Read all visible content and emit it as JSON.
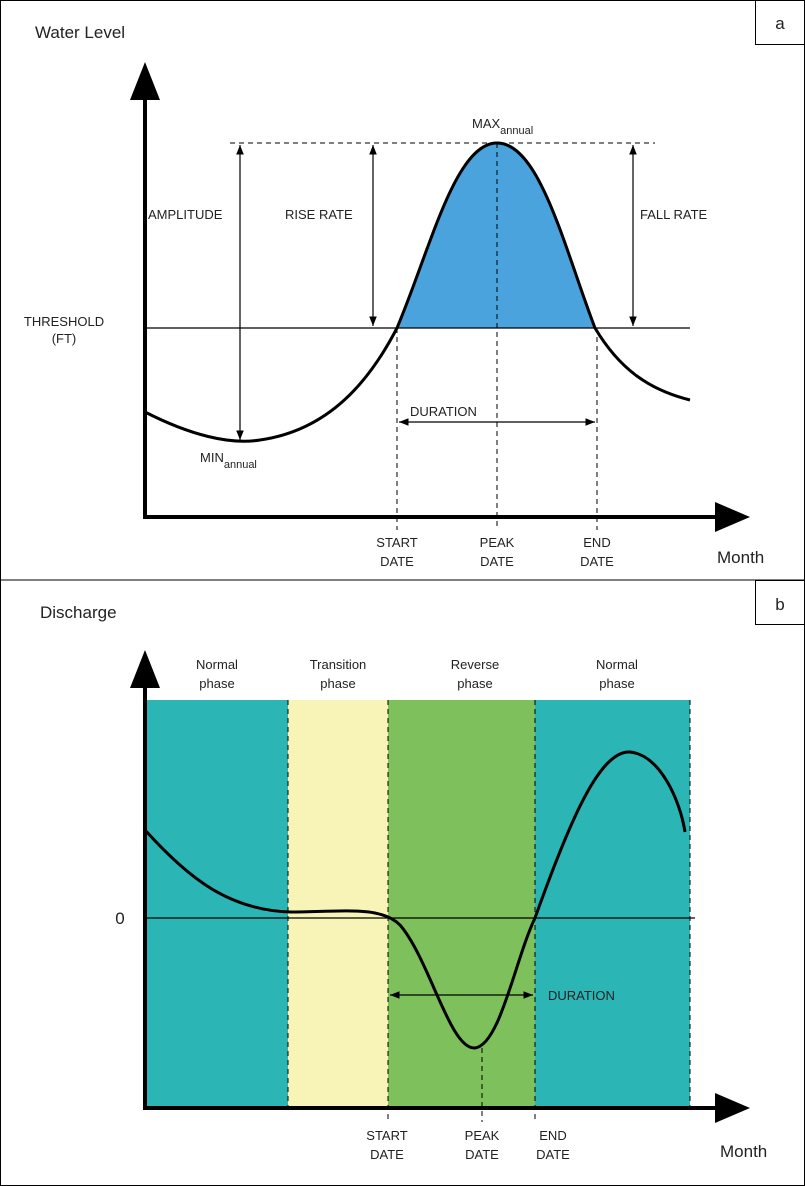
{
  "panel_a": {
    "label": "a",
    "y_axis_title": "Water Level",
    "x_axis_title": "Month",
    "max_label": {
      "main": "MAX",
      "sub": "annual"
    },
    "min_label": {
      "main": "MIN",
      "sub": "annual"
    },
    "amplitude": "AMPLITUDE",
    "rise_rate": "RISE RATE",
    "fall_rate": "FALL RATE",
    "threshold": [
      "THRESHOLD",
      "(FT)"
    ],
    "duration": "DURATION",
    "start_date": [
      "START",
      "DATE"
    ],
    "peak_date": [
      "PEAK",
      "DATE"
    ],
    "end_date": [
      "END",
      "DATE"
    ]
  },
  "panel_b": {
    "label": "b",
    "y_axis_title": "Discharge",
    "x_axis_title": "Month",
    "zero_label": "0",
    "phases": [
      [
        "Normal",
        "phase"
      ],
      [
        "Transition",
        "phase"
      ],
      [
        "Reverse",
        "phase"
      ],
      [
        "Normal",
        "phase"
      ]
    ],
    "duration": "DURATION",
    "start_date": [
      "START",
      "DATE"
    ],
    "peak_date": [
      "PEAK",
      "DATE"
    ],
    "end_date": [
      "END",
      "DATE"
    ]
  }
}
